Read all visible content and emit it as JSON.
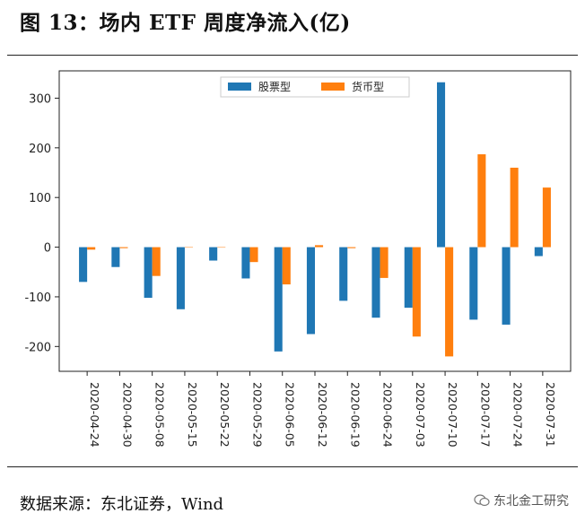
{
  "figure": {
    "title": "图 13：场内 ETF 周度净流入(亿)",
    "source": "数据来源：东北证券，Wind",
    "watermark": "东北金工研究"
  },
  "chart_data": {
    "type": "bar",
    "categories": [
      "2020-04-24",
      "2020-04-30",
      "2020-05-08",
      "2020-05-15",
      "2020-05-22",
      "2020-05-29",
      "2020-06-05",
      "2020-06-12",
      "2020-06-19",
      "2020-06-24",
      "2020-07-03",
      "2020-07-10",
      "2020-07-17",
      "2020-07-24",
      "2020-07-31"
    ],
    "series": [
      {
        "name": "股票型",
        "color": "#1f77b4",
        "values": [
          -70,
          -40,
          -102,
          -125,
          -27,
          -63,
          -210,
          -175,
          -108,
          -142,
          -122,
          332,
          -146,
          -156,
          -18
        ]
      },
      {
        "name": "货币型",
        "color": "#ff7f0e",
        "values": [
          -5,
          -2,
          -58,
          0,
          0,
          -30,
          -75,
          4,
          -2,
          -62,
          -180,
          -220,
          187,
          160,
          120
        ]
      }
    ],
    "xlabel": "",
    "ylabel": "",
    "ylim": [
      -250,
      355
    ],
    "yticks": [
      -200,
      -100,
      0,
      100,
      200,
      300
    ],
    "legend_position": "top-center",
    "grid": false
  }
}
